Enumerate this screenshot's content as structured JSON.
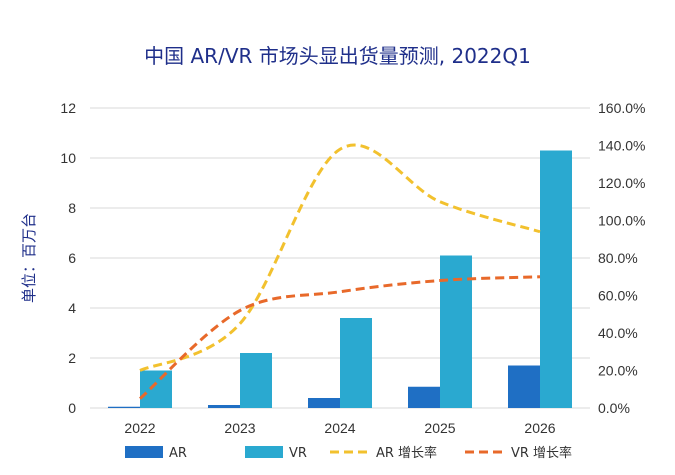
{
  "chart_data": {
    "type": "bar",
    "title": "中国 AR/VR 市场头显出货量预测, 2022Q1",
    "ylabel": "单位：百万台",
    "categories": [
      "2022",
      "2023",
      "2024",
      "2025",
      "2026"
    ],
    "ylim": [
      0,
      12
    ],
    "y_ticks": [
      "0",
      "2",
      "4",
      "6",
      "8",
      "10",
      "12"
    ],
    "y2lim": [
      0,
      160
    ],
    "y2_ticks": [
      "0.0%",
      "20.0%",
      "40.0%",
      "60.0%",
      "80.0%",
      "100.0%",
      "120.0%",
      "140.0%",
      "160.0%"
    ],
    "bar_series": [
      {
        "name": "AR",
        "color": "#1f6fc4",
        "values": [
          0.05,
          0.12,
          0.4,
          0.85,
          1.7
        ]
      },
      {
        "name": "VR",
        "color": "#2aa9d0",
        "values": [
          1.5,
          2.2,
          3.6,
          6.1,
          10.3
        ]
      }
    ],
    "line_series": [
      {
        "name": "AR 增长率",
        "color": "#f2c12e",
        "axis": "right",
        "values": [
          20,
          45,
          138,
          110,
          94
        ]
      },
      {
        "name": "VR 增长率",
        "color": "#e8692a",
        "axis": "right",
        "values": [
          5,
          52,
          62,
          68,
          70
        ]
      }
    ],
    "legend": "bottom"
  }
}
